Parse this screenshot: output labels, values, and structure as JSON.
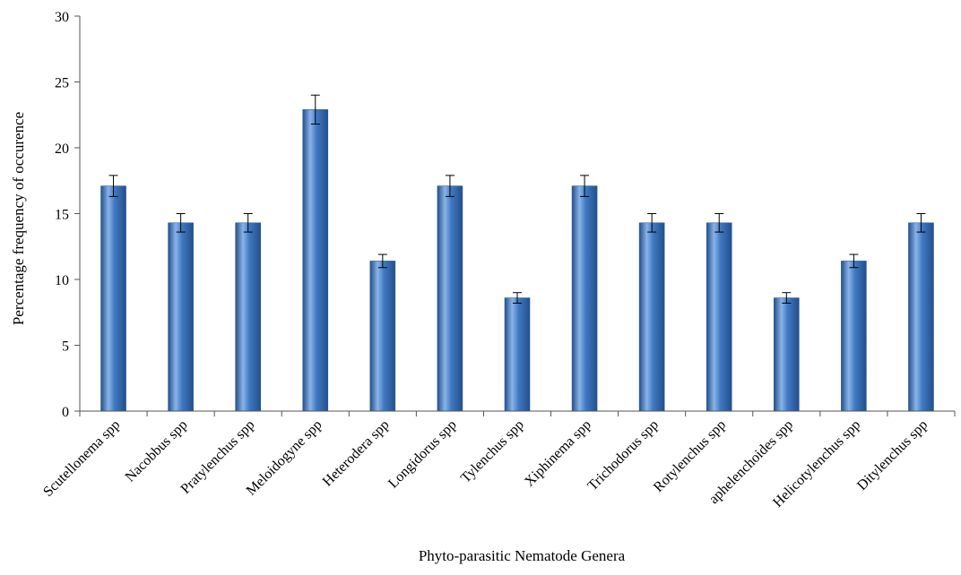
{
  "chart_data": {
    "type": "bar",
    "title": "",
    "xlabel": "Phyto-parasitic Nematode Genera",
    "ylabel": "Percentage frequency of occurence",
    "ylim": [
      0,
      30
    ],
    "yticks": [
      0,
      5,
      10,
      15,
      20,
      25,
      30
    ],
    "grid": false,
    "legend": "none",
    "bar_color": "#3f79c2",
    "bar_color_light": "#8ab4e8",
    "bar_color_dark": "#244f8a",
    "categories": [
      "Scutellonema spp",
      "Nacobbus spp",
      "Pratylenchus spp",
      "Meloidogyne spp",
      "Heterodera spp",
      "Longidorus spp",
      "Tylenchus spp",
      "Xiphinema spp",
      "Trichodorus spp",
      "Rotylenchus spp",
      "aphelenchoides spp",
      "Helicotylenchus spp",
      "Ditylenchus spp"
    ],
    "values": [
      17.1,
      14.3,
      14.3,
      22.9,
      11.4,
      17.1,
      8.6,
      17.1,
      14.3,
      14.3,
      8.6,
      11.4,
      14.3
    ],
    "errors": [
      0.8,
      0.7,
      0.7,
      1.1,
      0.5,
      0.8,
      0.4,
      0.8,
      0.7,
      0.7,
      0.4,
      0.5,
      0.7
    ]
  }
}
